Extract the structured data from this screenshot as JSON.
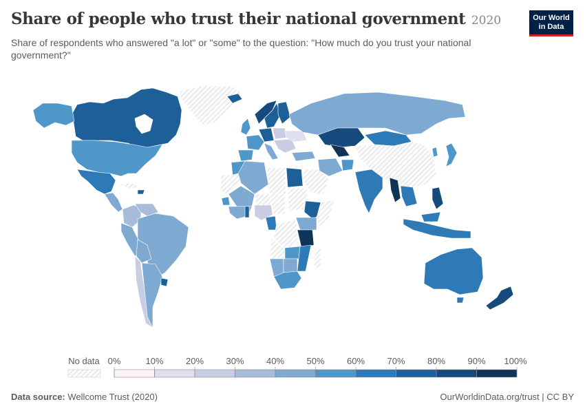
{
  "header": {
    "title": "Share of people who trust their national government",
    "year": "2020",
    "subtitle": "Share of respondents who answered \"a lot\" or \"some\" to the question: \"How much do you trust your national government?\""
  },
  "logo": {
    "line1": "Our World",
    "line2": "in Data"
  },
  "legend": {
    "no_data_label": "No data",
    "ticks": [
      "0%",
      "10%",
      "20%",
      "30%",
      "40%",
      "50%",
      "60%",
      "70%",
      "80%",
      "90%",
      "100%"
    ],
    "colors": [
      "#fff3f5",
      "#e0dfed",
      "#c9cde3",
      "#a7bcd8",
      "#7ea9d0",
      "#4f97c9",
      "#2e7ab6",
      "#1d5f98",
      "#164a7c",
      "#0f3458"
    ]
  },
  "footer": {
    "source_label": "Data source:",
    "source": "Wellcome Trust (2020)",
    "url_license": "OurWorldinData.org/trust | CC BY"
  }
}
